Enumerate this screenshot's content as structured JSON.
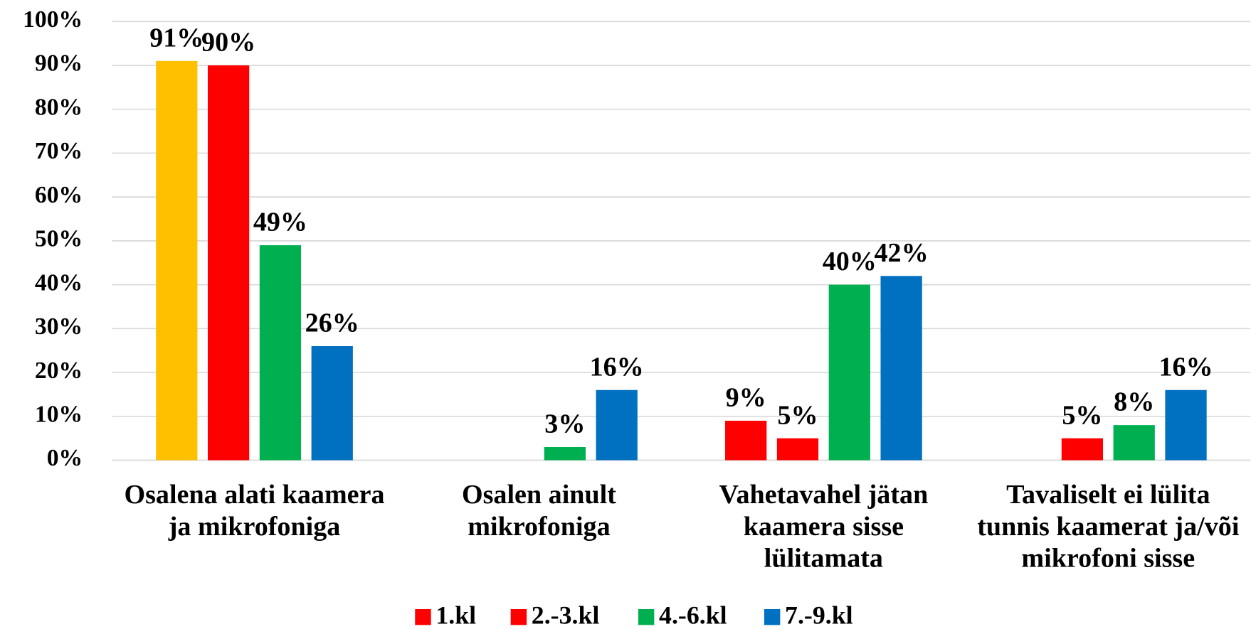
{
  "chart_data": {
    "type": "bar",
    "categories": [
      "Osalena alati kaamera ja mikrofoniga",
      "Osalen ainult mikrofoniga",
      "Vahetavahel jätan kaamera sisse lülitamata",
      "Tavaliselt ei lülita tunnis kaamerat ja/või mikrofoni sisse"
    ],
    "series": [
      {
        "name": "1.kl",
        "color": "#FF0000",
        "point_colors": [
          "#FFC000",
          "#FF0000",
          "#FF0000",
          "#FF0000"
        ],
        "values": [
          91,
          null,
          9,
          null
        ],
        "value_labels": [
          "91%",
          null,
          "9%",
          null
        ]
      },
      {
        "name": "2.-3.kl",
        "color": "#FF0000",
        "values": [
          90,
          null,
          5,
          5
        ],
        "value_labels": [
          "90%",
          null,
          "5%",
          "5%"
        ]
      },
      {
        "name": "4.-6.kl",
        "color": "#00B050",
        "values": [
          49,
          3,
          40,
          8
        ],
        "value_labels": [
          "49%",
          "3%",
          "40%",
          "8%"
        ]
      },
      {
        "name": "7.-9.kl",
        "color": "#0070C0",
        "values": [
          26,
          16,
          42,
          16
        ],
        "value_labels": [
          "26%",
          "16%",
          "42%",
          "16%"
        ]
      }
    ],
    "ylim": [
      0,
      100
    ],
    "yticks": [
      {
        "value": 0,
        "label": "0%"
      },
      {
        "value": 10,
        "label": "10%"
      },
      {
        "value": 20,
        "label": "20%"
      },
      {
        "value": 30,
        "label": "30%"
      },
      {
        "value": 40,
        "label": "40%"
      },
      {
        "value": 50,
        "label": "50%"
      },
      {
        "value": 60,
        "label": "60%"
      },
      {
        "value": 70,
        "label": "70%"
      },
      {
        "value": 80,
        "label": "80%"
      },
      {
        "value": 90,
        "label": "90%"
      },
      {
        "value": 100,
        "label": "100%"
      }
    ],
    "grid": true,
    "legend": "bottom"
  }
}
